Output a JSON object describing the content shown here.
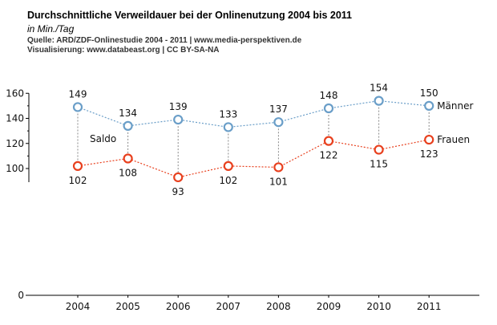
{
  "header": {
    "title": "Durchschnittliche Verweildauer bei der Onlinenutzung 2004 bis 2011",
    "subtitle": "in Min./Tag",
    "source": "Quelle: ARD/ZDF-Onlinestudie 2004 - 2011 | www.media-perspektiven.de",
    "credit": "Visualisierung: www.databeast.org | CC BY-SA-NA"
  },
  "chart_data": {
    "type": "line",
    "title": "Durchschnittliche Verweildauer bei der Onlinenutzung 2004 bis 2011",
    "subtitle": "in Min./Tag",
    "x": [
      "2004",
      "2005",
      "2006",
      "2007",
      "2008",
      "2009",
      "2010",
      "2011"
    ],
    "y_ticks": [
      0,
      100,
      120,
      140,
      160
    ],
    "y_broken_axis": true,
    "ylim": [
      0,
      160
    ],
    "grid": false,
    "series": [
      {
        "name": "Männer",
        "values": [
          149,
          134,
          139,
          133,
          137,
          148,
          154,
          150
        ],
        "color": "#6a9ec8",
        "label_position": "above"
      },
      {
        "name": "Frauen",
        "values": [
          102,
          108,
          93,
          102,
          101,
          122,
          115,
          123
        ],
        "color": "#e8401e",
        "label_position": "below"
      }
    ],
    "annotations": [
      {
        "text": "Saldo"
      }
    ],
    "gap_lines_color": "#888888"
  }
}
